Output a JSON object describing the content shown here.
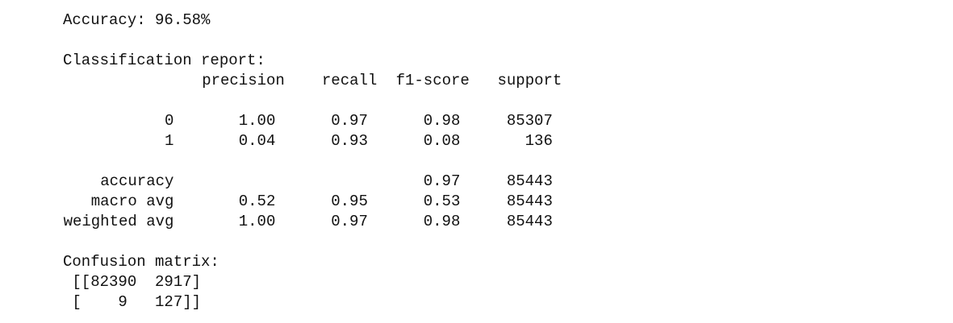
{
  "accuracy_line": "Accuracy: 96.58%",
  "report": {
    "title": "Classification report:",
    "headers": [
      "precision",
      "recall",
      "f1-score",
      "support"
    ],
    "rows": [
      {
        "label": "0",
        "cells": [
          "1.00",
          "0.97",
          "0.98",
          "85307"
        ]
      },
      {
        "label": "1",
        "cells": [
          "0.04",
          "0.93",
          "0.08",
          "136"
        ]
      },
      {
        "label": "accuracy",
        "cells": [
          "0.97",
          "85443"
        ]
      },
      {
        "label": "macro avg",
        "cells": [
          "0.52",
          "0.95",
          "0.53",
          "85443"
        ]
      },
      {
        "label": "weighted avg",
        "cells": [
          "1.00",
          "0.97",
          "0.98",
          "85443"
        ]
      }
    ]
  },
  "confusion_matrix": {
    "title": "Confusion matrix:",
    "lines": [
      " [[82390  2917]",
      " [    9   127]]"
    ]
  }
}
